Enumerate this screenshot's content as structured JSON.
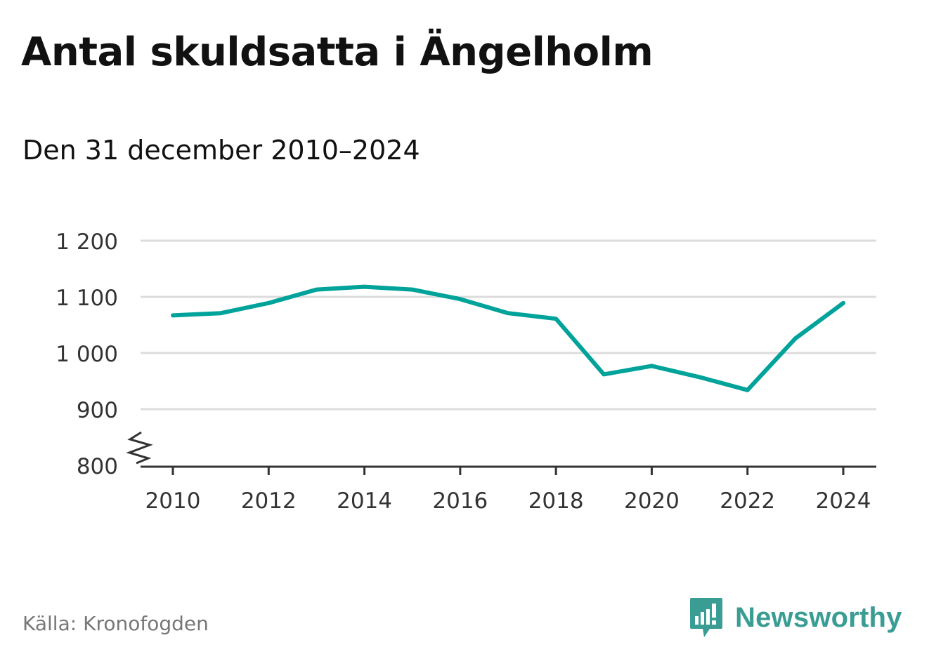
{
  "title": "Antal skuldsatta i Ängelholm",
  "subtitle": "Den 31 december 2010–2024",
  "source": "Källa: Kronofogden",
  "brand": "Newsworthy",
  "colors": {
    "line": "#00a39a",
    "grid": "#dcdcdc",
    "axis": "#333333",
    "brand": "#3a9d94"
  },
  "chart_data": {
    "type": "line",
    "x": [
      2010,
      2011,
      2012,
      2013,
      2014,
      2015,
      2016,
      2017,
      2018,
      2019,
      2020,
      2021,
      2022,
      2023,
      2024
    ],
    "series": [
      {
        "values": [
          1067,
          1071,
          1089,
          1113,
          1118,
          1113,
          1096,
          1071,
          1061,
          962,
          977,
          957,
          934,
          1026,
          1089
        ]
      }
    ],
    "ylim": [
      800,
      1200
    ],
    "xlim": [
      2010,
      2024
    ],
    "y_ticks": [
      800,
      900,
      1000,
      1100,
      1200
    ],
    "y_tick_labels": [
      "800",
      "900",
      "1 000",
      "1 100",
      "1 200"
    ],
    "x_ticks": [
      2010,
      2012,
      2014,
      2016,
      2018,
      2020,
      2022,
      2024
    ],
    "x_tick_labels": [
      "2010",
      "2012",
      "2014",
      "2016",
      "2018",
      "2020",
      "2022",
      "2024"
    ],
    "axis_break": true,
    "grid": true,
    "xlabel": "",
    "ylabel": ""
  }
}
